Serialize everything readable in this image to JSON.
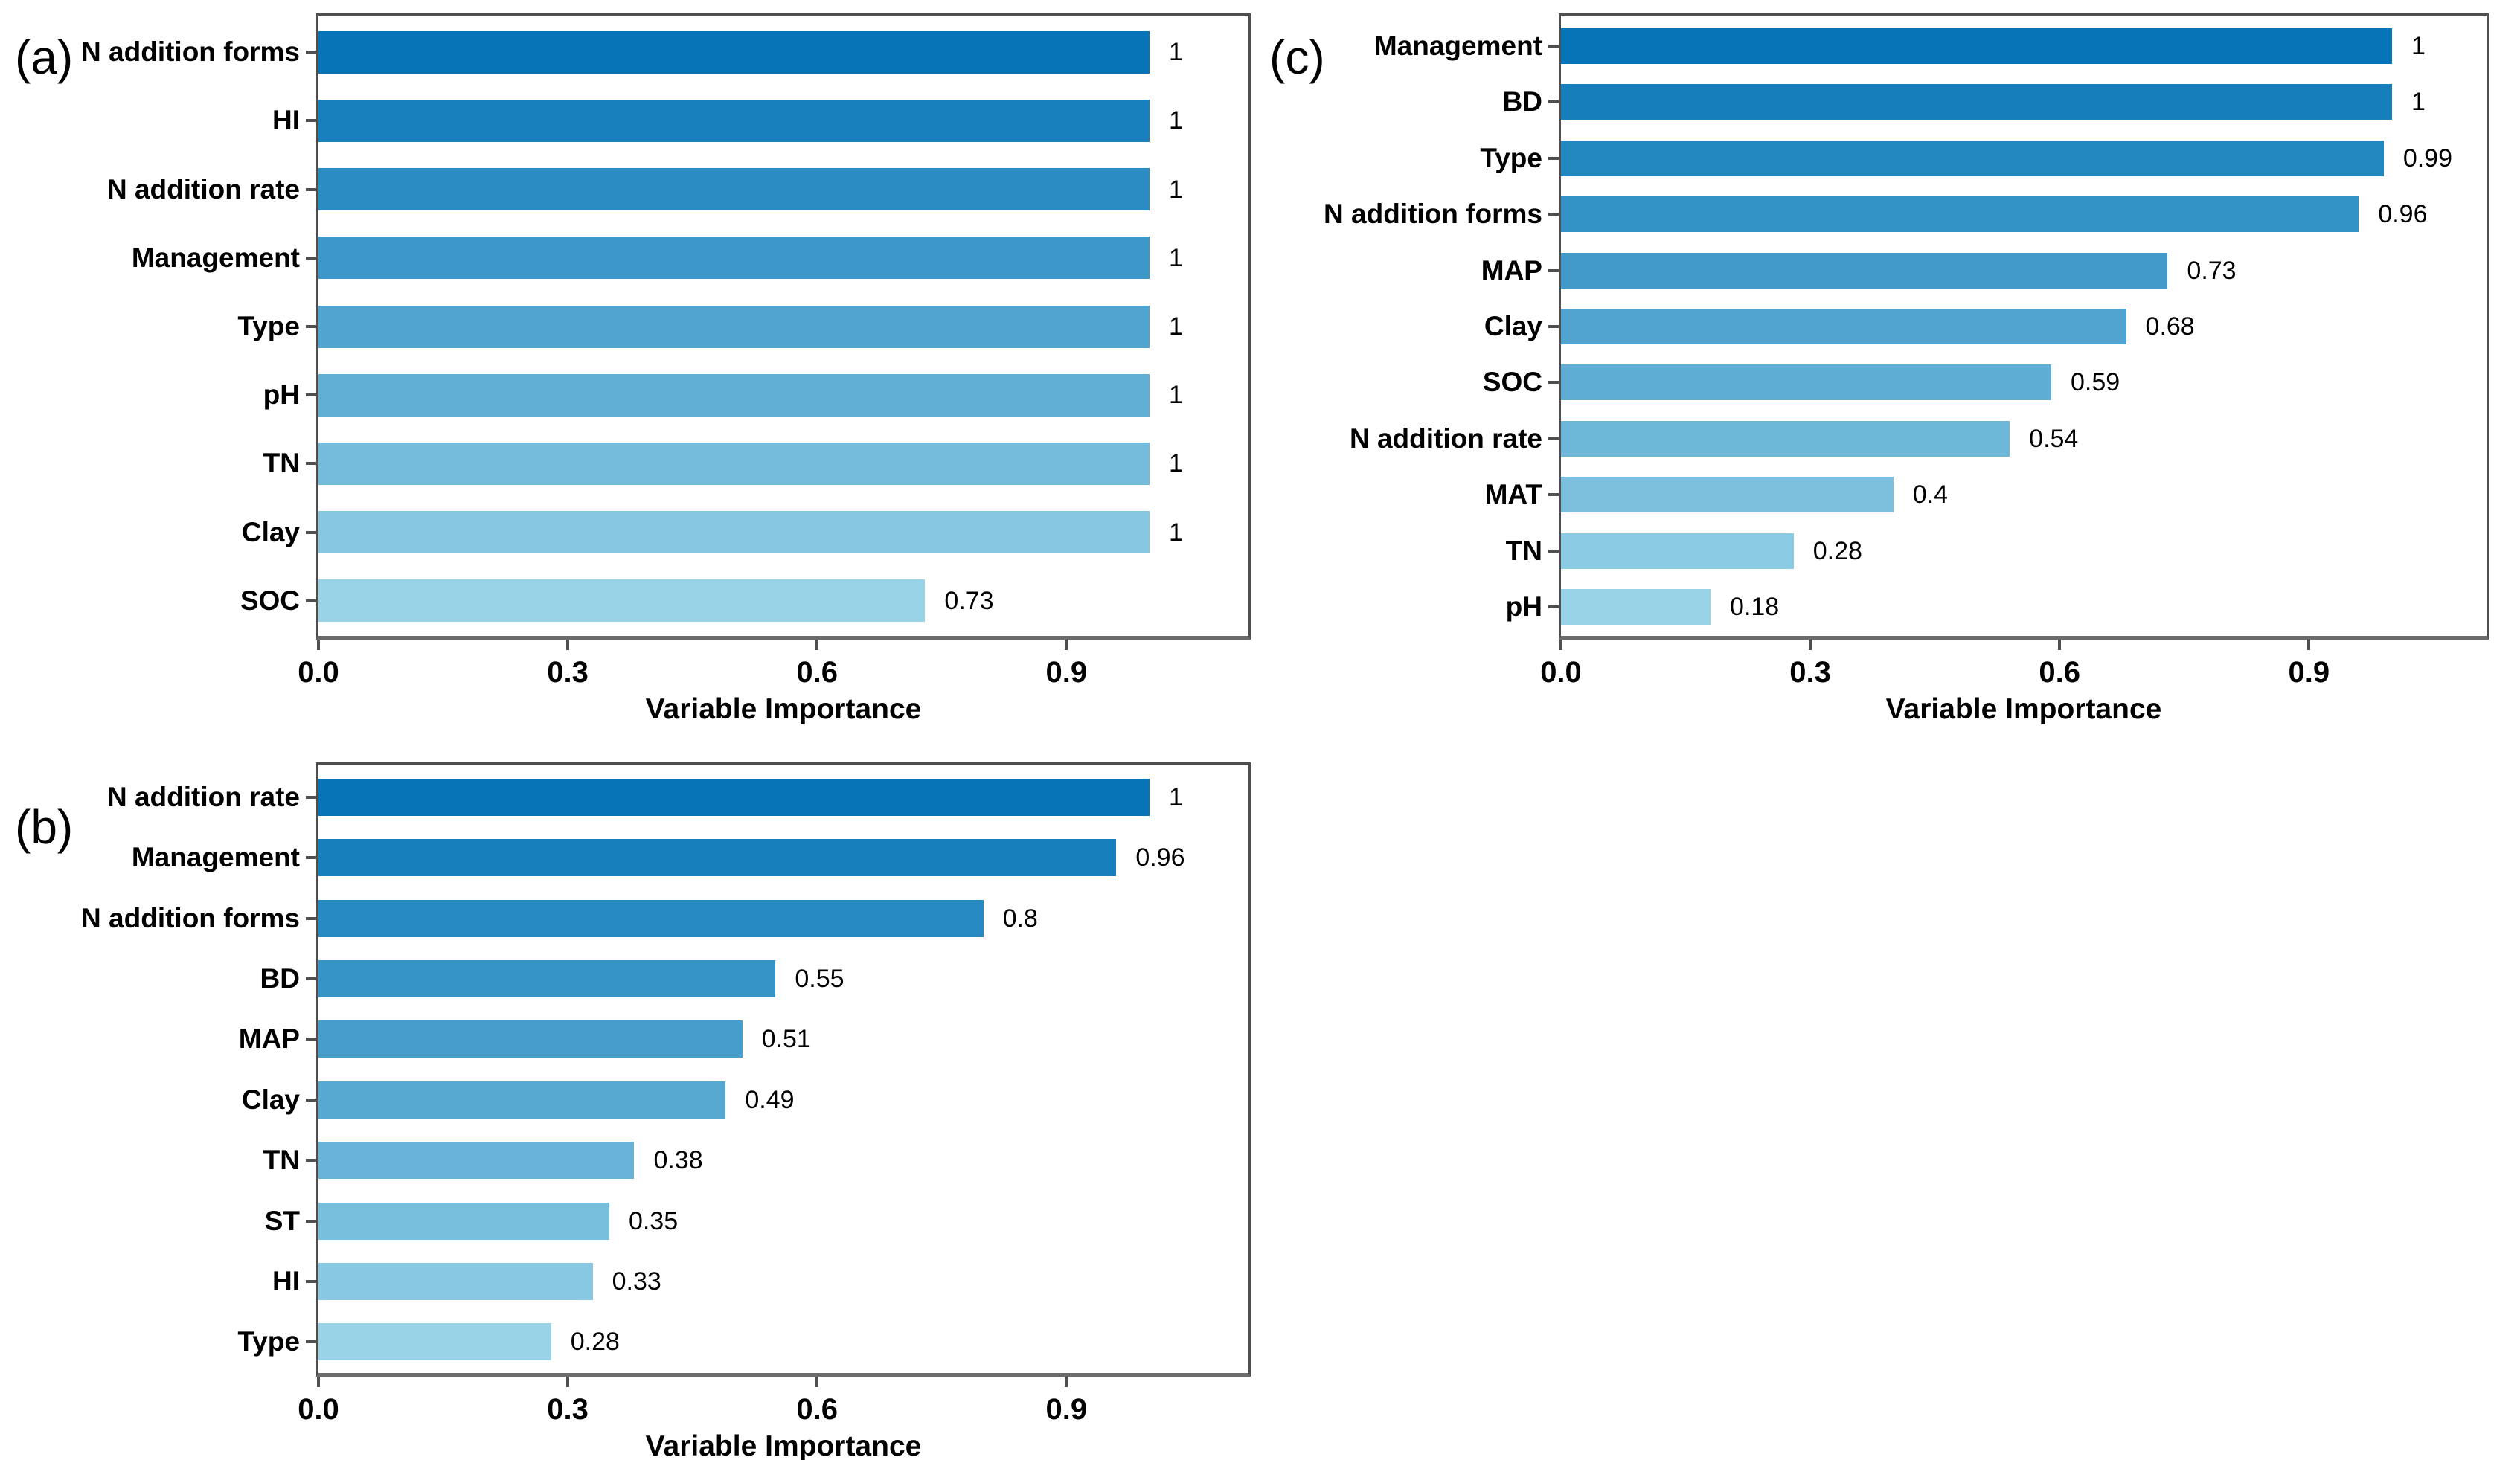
{
  "style": {
    "background": "#ffffff",
    "bar_color_dark": "#0674B6",
    "bar_color_light": "#99D3E8",
    "box_border_color": "#4f4f4f",
    "axis_line_color": "#6b6b6b",
    "gridline_color": "#e6e6e6",
    "text_color": "#000000"
  },
  "chart_data": [
    {
      "type": "bar",
      "orientation": "horizontal",
      "panel_label": "(a)",
      "categories": [
        "N addition forms",
        "HI",
        "N addition rate",
        "Management",
        "Type",
        "pH",
        "TN",
        "Clay",
        "SOC"
      ],
      "values": [
        1,
        1,
        1,
        1,
        1,
        1,
        1,
        1,
        0.73
      ],
      "value_labels": [
        "1",
        "1",
        "1",
        "1",
        "1",
        "1",
        "1",
        "1",
        "0.73"
      ],
      "xlabel": "Variable Importance",
      "ylabel": "",
      "xlim": [
        0,
        1.125
      ],
      "x_ticks": [
        0,
        0.3,
        0.6,
        0.9
      ],
      "x_tick_labels": [
        "0.0",
        "0.3",
        "0.6",
        "0.9"
      ],
      "grid": "vertical gridlines at 0.3/0.6/0.9",
      "legend": "none",
      "bar_color_scheme": "sequential blue, darkest at top to lightest at bottom"
    },
    {
      "type": "bar",
      "orientation": "horizontal",
      "panel_label": "(b)",
      "categories": [
        "N addition rate",
        "Management",
        "N addition forms",
        "BD",
        "MAP",
        "Clay",
        "TN",
        "ST",
        "HI",
        "Type"
      ],
      "values": [
        1,
        0.96,
        0.8,
        0.55,
        0.51,
        0.49,
        0.38,
        0.35,
        0.33,
        0.28
      ],
      "value_labels": [
        "1",
        "0.96",
        "0.8",
        "0.55",
        "0.51",
        "0.49",
        "0.38",
        "0.35",
        "0.33",
        "0.28"
      ],
      "xlabel": "Variable Importance",
      "ylabel": "",
      "xlim": [
        0,
        1.125
      ],
      "x_ticks": [
        0,
        0.3,
        0.6,
        0.9
      ],
      "x_tick_labels": [
        "0.0",
        "0.3",
        "0.6",
        "0.9"
      ],
      "grid": "vertical gridlines at 0.3/0.6/0.9",
      "legend": "none",
      "bar_color_scheme": "sequential blue, darkest at top to lightest at bottom"
    },
    {
      "type": "bar",
      "orientation": "horizontal",
      "panel_label": "(c)",
      "categories": [
        "Management",
        "BD",
        "Type",
        "N addition forms",
        "MAP",
        "Clay",
        "SOC",
        "N addition rate",
        "MAT",
        "TN",
        "pH"
      ],
      "values": [
        1,
        1,
        0.99,
        0.96,
        0.73,
        0.68,
        0.59,
        0.54,
        0.4,
        0.28,
        0.18
      ],
      "value_labels": [
        "1",
        "1",
        "0.99",
        "0.96",
        "0.73",
        "0.68",
        "0.59",
        "0.54",
        "0.4",
        "0.28",
        "0.18"
      ],
      "xlabel": "Variable Importance",
      "ylabel": "",
      "xlim": [
        0,
        1.125
      ],
      "x_ticks": [
        0,
        0.3,
        0.6,
        0.9
      ],
      "x_tick_labels": [
        "0.0",
        "0.3",
        "0.6",
        "0.9"
      ],
      "grid": "vertical gridlines at 0.3/0.6/0.9",
      "legend": "none",
      "bar_color_scheme": "sequential blue, darkest at top to lightest at bottom"
    }
  ]
}
